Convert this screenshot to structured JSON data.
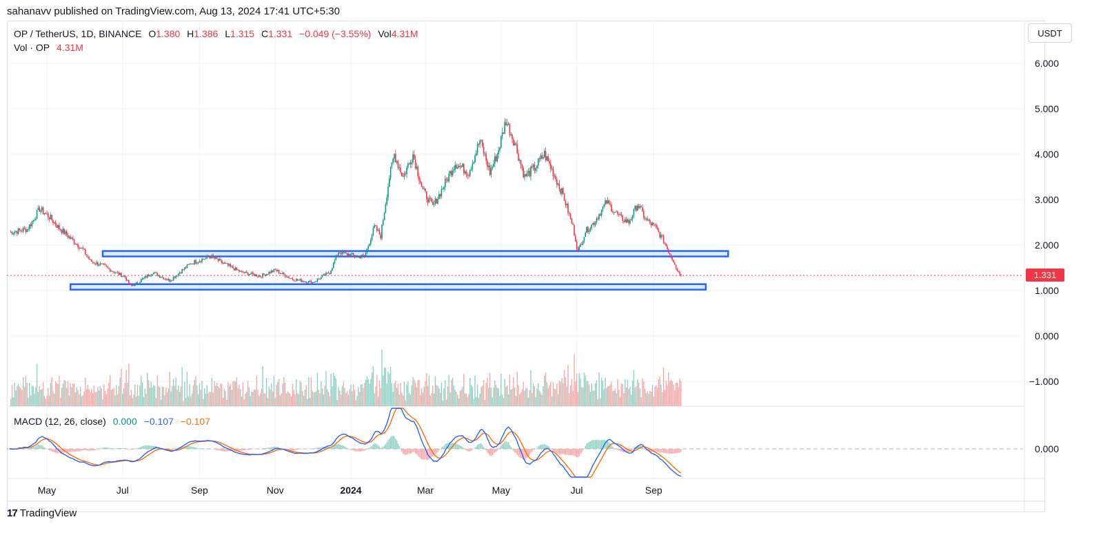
{
  "header": {
    "published": "sahanavv published on TradingView.com, Aug 13, 2024 17:41 UTC+5:30"
  },
  "legend": {
    "symbol": "OP / TetherUS, 1D, BINANCE",
    "o_label": "O",
    "o": "1.380",
    "h_label": "H",
    "h": "1.386",
    "l_label": "L",
    "l": "1.315",
    "c_label": "C",
    "c": "1.331",
    "change": "−0.049 (−3.55%)",
    "vol_label": "Vol",
    "vol": "4.31M",
    "vol_series_label": "Vol · OP",
    "vol_series_value": "4.31M"
  },
  "macd_legend": {
    "label": "MACD (12, 26, close)",
    "hist": "0.000",
    "macd": "−0.107",
    "signal": "−0.107"
  },
  "currency": "USDT",
  "last_price": "1.331",
  "footer": {
    "brand": "TradingView",
    "logo": "17"
  },
  "colors": {
    "up": "#089981",
    "down": "#f23645",
    "box_stroke": "#2962ff",
    "box_fill": "#bbdefb",
    "macd": "#2962ff",
    "signal": "#ff6d00"
  },
  "chart_data": {
    "type": "candlestick",
    "symbol": "OP / TetherUS",
    "interval": "1D",
    "price_axis": {
      "ticks": [
        "6.000",
        "5.000",
        "4.000",
        "3.000",
        "2.000",
        "1.000",
        "0.000",
        "−1.000"
      ],
      "range": [
        -1.6,
        6.9
      ]
    },
    "macd_axis": {
      "ticks": [
        "0.000"
      ]
    },
    "time_axis": {
      "labels": [
        {
          "label": "May",
          "date": "2023-05-01"
        },
        {
          "label": "Jul",
          "date": "2023-07-01"
        },
        {
          "label": "Sep",
          "date": "2023-09-01"
        },
        {
          "label": "Nov",
          "date": "2023-11-01"
        },
        {
          "label": "2024",
          "date": "2024-01-01",
          "bold": true
        },
        {
          "label": "Mar",
          "date": "2024-03-01"
        },
        {
          "label": "May",
          "date": "2024-05-01"
        },
        {
          "label": "Jul",
          "date": "2024-07-01"
        },
        {
          "label": "Sep",
          "date": "2024-09-01"
        }
      ],
      "range": [
        "2023-04-01",
        "2024-09-23"
      ]
    },
    "price_path": [
      [
        "2023-04-01",
        2.28
      ],
      [
        "2023-04-15",
        2.35
      ],
      [
        "2023-04-20",
        2.55
      ],
      [
        "2023-04-25",
        2.8
      ],
      [
        "2023-05-03",
        2.62
      ],
      [
        "2023-05-10",
        2.4
      ],
      [
        "2023-05-20",
        2.15
      ],
      [
        "2023-05-30",
        1.9
      ],
      [
        "2023-06-05",
        1.65
      ],
      [
        "2023-06-15",
        1.55
      ],
      [
        "2023-06-25",
        1.4
      ],
      [
        "2023-07-03",
        1.3
      ],
      [
        "2023-07-07",
        1.1
      ],
      [
        "2023-07-12",
        1.15
      ],
      [
        "2023-07-25",
        1.4
      ],
      [
        "2023-08-08",
        1.22
      ],
      [
        "2023-08-25",
        1.6
      ],
      [
        "2023-09-10",
        1.75
      ],
      [
        "2023-09-20",
        1.6
      ],
      [
        "2023-10-05",
        1.4
      ],
      [
        "2023-10-20",
        1.32
      ],
      [
        "2023-11-01",
        1.45
      ],
      [
        "2023-11-15",
        1.25
      ],
      [
        "2023-12-01",
        1.18
      ],
      [
        "2023-12-15",
        1.4
      ],
      [
        "2023-12-22",
        1.85
      ],
      [
        "2024-01-05",
        1.75
      ],
      [
        "2024-01-12",
        1.75
      ],
      [
        "2024-01-20",
        2.4
      ],
      [
        "2024-01-25",
        2.2
      ],
      [
        "2024-02-01",
        3.5
      ],
      [
        "2024-02-05",
        4.0
      ],
      [
        "2024-02-12",
        3.5
      ],
      [
        "2024-02-20",
        4.0
      ],
      [
        "2024-02-28",
        3.2
      ],
      [
        "2024-03-07",
        2.85
      ],
      [
        "2024-03-12",
        3.1
      ],
      [
        "2024-03-25",
        3.8
      ],
      [
        "2024-04-05",
        3.6
      ],
      [
        "2024-04-14",
        4.3
      ],
      [
        "2024-04-22",
        3.6
      ],
      [
        "2024-04-28",
        4.0
      ],
      [
        "2024-05-05",
        4.75
      ],
      [
        "2024-05-12",
        4.25
      ],
      [
        "2024-05-20",
        3.5
      ],
      [
        "2024-05-28",
        3.7
      ],
      [
        "2024-06-05",
        4.0
      ],
      [
        "2024-06-12",
        3.6
      ],
      [
        "2024-06-20",
        3.1
      ],
      [
        "2024-06-28",
        2.4
      ],
      [
        "2024-07-02",
        1.85
      ],
      [
        "2024-07-08",
        2.3
      ],
      [
        "2024-07-15",
        2.5
      ],
      [
        "2024-07-25",
        2.95
      ],
      [
        "2024-08-05",
        2.6
      ],
      [
        "2024-08-12",
        2.5
      ],
      [
        "2024-08-19",
        2.9
      ],
      [
        "2024-08-26",
        2.55
      ],
      [
        "2024-09-02",
        2.4
      ],
      [
        "2024-09-09",
        2.1
      ],
      [
        "2024-09-14",
        1.8
      ],
      [
        "2024-09-18",
        1.6
      ],
      [
        "2024-09-20",
        1.45
      ],
      [
        "2024-09-23",
        1.331
      ]
    ],
    "last_close": 1.331,
    "zones": [
      {
        "name": "resistance-zone",
        "from": "2023-06-15",
        "to": "2024-10-31",
        "low": 1.75,
        "high": 1.87
      },
      {
        "name": "support-zone",
        "from": "2023-05-20",
        "to": "2024-10-13",
        "low": 1.02,
        "high": 1.14
      }
    ],
    "volume": {
      "label": "Vol · OP",
      "last": "4.31M"
    },
    "macd": {
      "label": "MACD (12, 26, close)",
      "hist": 0.0,
      "macd": -0.107,
      "signal": -0.107
    }
  }
}
